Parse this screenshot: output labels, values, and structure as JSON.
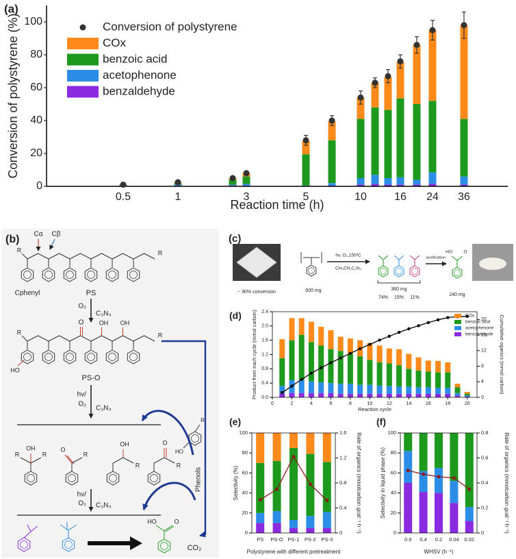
{
  "chart_data": [
    {
      "type": "bar",
      "stacked": true,
      "panel_label": "(a)",
      "xlabel": "Reaction time (h)",
      "ylabel": "Conversion of polystyrene (%)",
      "categories": [
        "0.5",
        "1",
        null,
        "3",
        "5",
        null,
        "10",
        null,
        null,
        "16",
        null,
        "24",
        "36"
      ],
      "ylim": [
        0,
        110
      ],
      "yticks": [
        0,
        20,
        40,
        60,
        80,
        100
      ],
      "legend": "upper left",
      "series": [
        {
          "name": "benzaldehyde",
          "color": "#8a2be2",
          "values": [
            0.2,
            0.5,
            0.5,
            0.5,
            0,
            0.5,
            1,
            1.5,
            1,
            1,
            1,
            1.5,
            1
          ]
        },
        {
          "name": "acetophenone",
          "color": "#2b8de6",
          "values": [
            0.2,
            0.5,
            0.5,
            1,
            0.5,
            1.5,
            4,
            5.5,
            4,
            4.5,
            3,
            7,
            5
          ]
        },
        {
          "name": "benzoic acid",
          "color": "#1d9a1d",
          "values": [
            0.4,
            1,
            3,
            4.5,
            19,
            26,
            36,
            41,
            41.5,
            48,
            46,
            43.5,
            35
          ]
        },
        {
          "name": "COx",
          "color": "#ff8a1c",
          "values": [
            0.2,
            0.5,
            1,
            2,
            8,
            11.5,
            13,
            15,
            20,
            22,
            36,
            43,
            57
          ]
        },
        {
          "name": "Conversion of polystyrene",
          "type": "scatter",
          "color": "#333333",
          "values": [
            1,
            2.5,
            5,
            8,
            28,
            40,
            54,
            63,
            67,
            76,
            86,
            95,
            98
          ],
          "errors": [
            1,
            1,
            1,
            1,
            3,
            3,
            4,
            3,
            4,
            4,
            5,
            6,
            8
          ]
        }
      ]
    },
    {
      "type": "bar",
      "stacked": true,
      "panel_label": "(d)",
      "xlabel": "Reaction cycle",
      "ylabel": "Product from each cycle (mmol carbon)",
      "y2label": "Cumulative oganics (mmol carbon)",
      "x": [
        1,
        2,
        3,
        4,
        5,
        6,
        7,
        8,
        9,
        10,
        11,
        12,
        13,
        14,
        15,
        16,
        17,
        18,
        19,
        20
      ],
      "xlim": [
        0,
        21
      ],
      "xticks": [
        0,
        2,
        4,
        6,
        8,
        10,
        12,
        14,
        16,
        18,
        20
      ],
      "ylim": [
        0,
        2.4
      ],
      "yticks": [
        {
          "value": 0,
          "label": "0.0"
        },
        0.4,
        0.8,
        1.2,
        1.6,
        {
          "value": 2,
          "label": "2.0"
        },
        2.4
      ],
      "y2lim": [
        0,
        22
      ],
      "y2ticks": [
        0,
        4,
        8,
        12,
        16,
        20
      ],
      "legend": "upper right",
      "series": [
        {
          "name": "benzaldehyde",
          "color": "#8a2be2",
          "values": [
            0.1,
            0.12,
            0.12,
            0.12,
            0.12,
            0.12,
            0.1,
            0.1,
            0.1,
            0.1,
            0.1,
            0.1,
            0.1,
            0.1,
            0.1,
            0.1,
            0.1,
            0.1,
            0.05,
            0.02
          ]
        },
        {
          "name": "acetophenone",
          "color": "#2b8de6",
          "values": [
            0.22,
            0.36,
            0.36,
            0.33,
            0.3,
            0.28,
            0.28,
            0.28,
            0.25,
            0.25,
            0.23,
            0.22,
            0.2,
            0.2,
            0.18,
            0.18,
            0.17,
            0.17,
            0.07,
            0.03
          ]
        },
        {
          "name": "benzoic acid",
          "color": "#1d9a1d",
          "values": [
            0.78,
            1.12,
            1.27,
            1.1,
            1.03,
            0.95,
            0.92,
            0.84,
            0.8,
            0.7,
            0.65,
            0.63,
            0.6,
            0.5,
            0.47,
            0.44,
            0.43,
            0.43,
            0.16,
            0.05
          ]
        },
        {
          "name": "COx",
          "color": "#ff8a1c",
          "values": [
            0.53,
            0.62,
            0.47,
            0.57,
            0.53,
            0.53,
            0.4,
            0.43,
            0.45,
            0.47,
            0.47,
            0.42,
            0.45,
            0.42,
            0.37,
            0.31,
            0.32,
            0.28,
            0.1,
            0.05
          ]
        },
        {
          "type": "line",
          "axis": "y2",
          "color": "#000000",
          "values": [
            1.2,
            2.9,
            4.6,
            6.2,
            7.6,
            8.9,
            10.1,
            11.3,
            12.5,
            13.6,
            14.7,
            15.7,
            16.7,
            17.6,
            18.4,
            19.2,
            19.9,
            20.5,
            20.7,
            20.8
          ]
        }
      ]
    },
    {
      "type": "bar",
      "stacked": true,
      "panel_label": "(e)",
      "xlabel": "Polystyrene with different pretreatment",
      "ylabel": "Selectivity (%)",
      "y2label": "Rate of organics (mmolcarbon gcat⁻¹ h⁻¹)",
      "categories": [
        "PS",
        "PS-O",
        "PS-1",
        "PS-2",
        "PS-3"
      ],
      "ylim": [
        0,
        100
      ],
      "yticks": [
        0,
        20,
        40,
        60,
        80,
        100
      ],
      "y2lim": [
        0,
        1.6
      ],
      "y2ticks": [
        0,
        0.4,
        0.8,
        1.2,
        1.6
      ],
      "series": [
        {
          "color": "#8a2be2",
          "values": [
            10,
            10,
            5,
            5,
            5
          ]
        },
        {
          "color": "#2b8de6",
          "values": [
            10,
            12,
            8,
            12,
            16
          ]
        },
        {
          "color": "#1d9a1d",
          "values": [
            50,
            50,
            72,
            62,
            50
          ]
        },
        {
          "color": "#ff8a1c",
          "values": [
            30,
            28,
            15,
            21,
            29
          ]
        },
        {
          "type": "line",
          "axis": "y2",
          "color": "#8b1a1a",
          "values": [
            0.53,
            0.7,
            1.22,
            0.78,
            0.52
          ]
        }
      ]
    },
    {
      "type": "bar",
      "stacked": true,
      "panel_label": "(f)",
      "xlabel": "WHSV (h⁻¹)",
      "ylabel": "Selectivity in liquid phase (%)",
      "y2label": "Rate of organics (mmolcarbon gcat⁻¹ h⁻¹)",
      "categories": [
        "0.9",
        "0.4",
        "0.2",
        "0.04",
        "0.02"
      ],
      "ylim": [
        0,
        100
      ],
      "yticks": [
        0,
        20,
        40,
        60,
        80,
        100
      ],
      "y2lim": [
        0,
        0.8
      ],
      "y2ticks": [
        0,
        0.2,
        0.4,
        0.6,
        0.8
      ],
      "series": [
        {
          "color": "#8a2be2",
          "values": [
            50,
            41,
            40,
            30,
            12
          ]
        },
        {
          "color": "#2b8de6",
          "values": [
            32,
            21,
            25,
            22,
            14
          ]
        },
        {
          "color": "#1d9a1d",
          "values": [
            18,
            38,
            35,
            48,
            74
          ]
        },
        {
          "type": "line",
          "axis": "y2",
          "color": "#8b1a1a",
          "values": [
            0.5,
            0.47,
            0.45,
            0.44,
            0.35
          ]
        }
      ]
    }
  ],
  "scheme_b": {
    "panel_label": "(b)",
    "c_alpha": "Cα",
    "c_beta": "Cβ",
    "r_label": "R",
    "c_phenyl": "Cphenyl",
    "ps": "PS",
    "ps_o": "PS-O",
    "o2": "O₂",
    "c3n4": "C₃N₄",
    "hv": "hv/",
    "oh": "OH",
    "o": "O",
    "ho": "HO",
    "phenols": "Phenols",
    "co2": "CO₂"
  },
  "scheme_c": {
    "panel_label": "(c)",
    "conversion": "~ 90% conversion",
    "mass_start": "500 mg",
    "conditions_1": "hv, O₂,150ºC",
    "conditions_2": "CH₃CN,C₃N₄",
    "mass_products": "360 mg",
    "yields": [
      "74%",
      "15%",
      "11%"
    ],
    "purification": "purification",
    "mass_final": "240 mg",
    "ho": "HO",
    "o": "O"
  }
}
